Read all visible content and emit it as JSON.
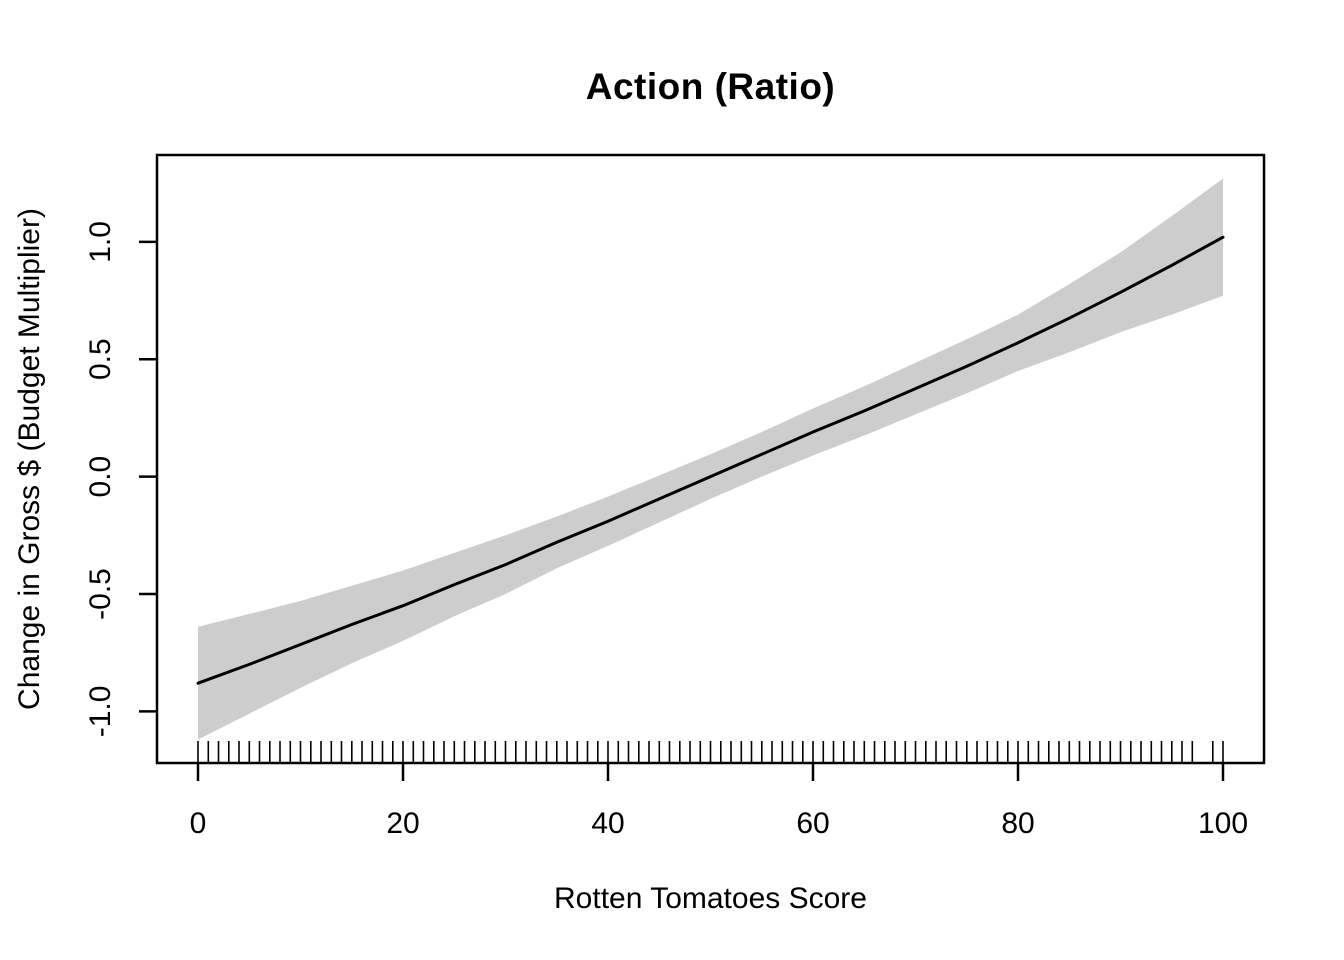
{
  "title": "Action (Ratio)",
  "xlabel": "Rotten Tomatoes Score",
  "ylabel": "Change in Gross $ (Budget Multiplier)",
  "colors": {
    "background": "#ffffff",
    "band": "#cdcdcd",
    "line": "#000000",
    "axis": "#000000",
    "text": "#000000"
  },
  "chart_data": {
    "type": "line",
    "title": "Action (Ratio)",
    "xlabel": "Rotten Tomatoes Score",
    "ylabel": "Change in Gross $ (Budget Multiplier)",
    "xlim": [
      -4,
      104
    ],
    "ylim": [
      -1.22,
      1.37
    ],
    "grid": false,
    "legend": false,
    "x_ticks": [
      0,
      20,
      40,
      60,
      80,
      100
    ],
    "x_tick_labels": [
      "0",
      "20",
      "40",
      "60",
      "80",
      "100"
    ],
    "y_ticks": [
      -1.0,
      -0.5,
      0.0,
      0.5,
      1.0
    ],
    "y_tick_labels": [
      "-1.0",
      "-0.5",
      "0.0",
      "0.5",
      "1.0"
    ],
    "x": [
      0,
      5,
      10,
      15,
      20,
      25,
      30,
      35,
      40,
      45,
      50,
      55,
      60,
      65,
      70,
      75,
      80,
      85,
      90,
      95,
      100
    ],
    "series": [
      {
        "name": "fit",
        "values": [
          -0.88,
          -0.8,
          -0.715,
          -0.63,
          -0.55,
          -0.46,
          -0.375,
          -0.28,
          -0.19,
          -0.095,
          0.0,
          0.095,
          0.19,
          0.28,
          0.375,
          0.47,
          0.57,
          0.675,
          0.785,
          0.9,
          1.02
        ]
      },
      {
        "name": "ci_upper",
        "values": [
          -0.64,
          -0.585,
          -0.53,
          -0.465,
          -0.4,
          -0.325,
          -0.25,
          -0.17,
          -0.085,
          0.005,
          0.095,
          0.19,
          0.29,
          0.385,
          0.485,
          0.585,
          0.69,
          0.82,
          0.955,
          1.11,
          1.27
        ]
      },
      {
        "name": "ci_lower",
        "values": [
          -1.12,
          -1.01,
          -0.9,
          -0.795,
          -0.7,
          -0.595,
          -0.5,
          -0.39,
          -0.295,
          -0.195,
          -0.095,
          0.0,
          0.09,
          0.175,
          0.265,
          0.355,
          0.45,
          0.53,
          0.615,
          0.69,
          0.77
        ]
      }
    ],
    "rug_x": [
      0,
      1,
      2,
      3,
      4,
      5,
      6,
      7,
      8,
      9,
      10,
      11,
      12,
      13,
      14,
      15,
      16,
      17,
      18,
      19,
      20,
      21,
      22,
      23,
      24,
      25,
      26,
      27,
      28,
      29,
      30,
      31,
      32,
      33,
      34,
      35,
      36,
      37,
      38,
      39,
      40,
      41,
      42,
      43,
      44,
      45,
      46,
      47,
      48,
      49,
      50,
      51,
      52,
      53,
      54,
      55,
      56,
      57,
      58,
      59,
      60,
      61,
      62,
      63,
      64,
      65,
      66,
      67,
      68,
      69,
      70,
      71,
      72,
      73,
      74,
      75,
      76,
      77,
      78,
      79,
      80,
      81,
      82,
      83,
      84,
      85,
      86,
      87,
      88,
      89,
      90,
      91,
      92,
      93,
      94,
      95,
      96,
      97,
      99,
      100
    ]
  }
}
